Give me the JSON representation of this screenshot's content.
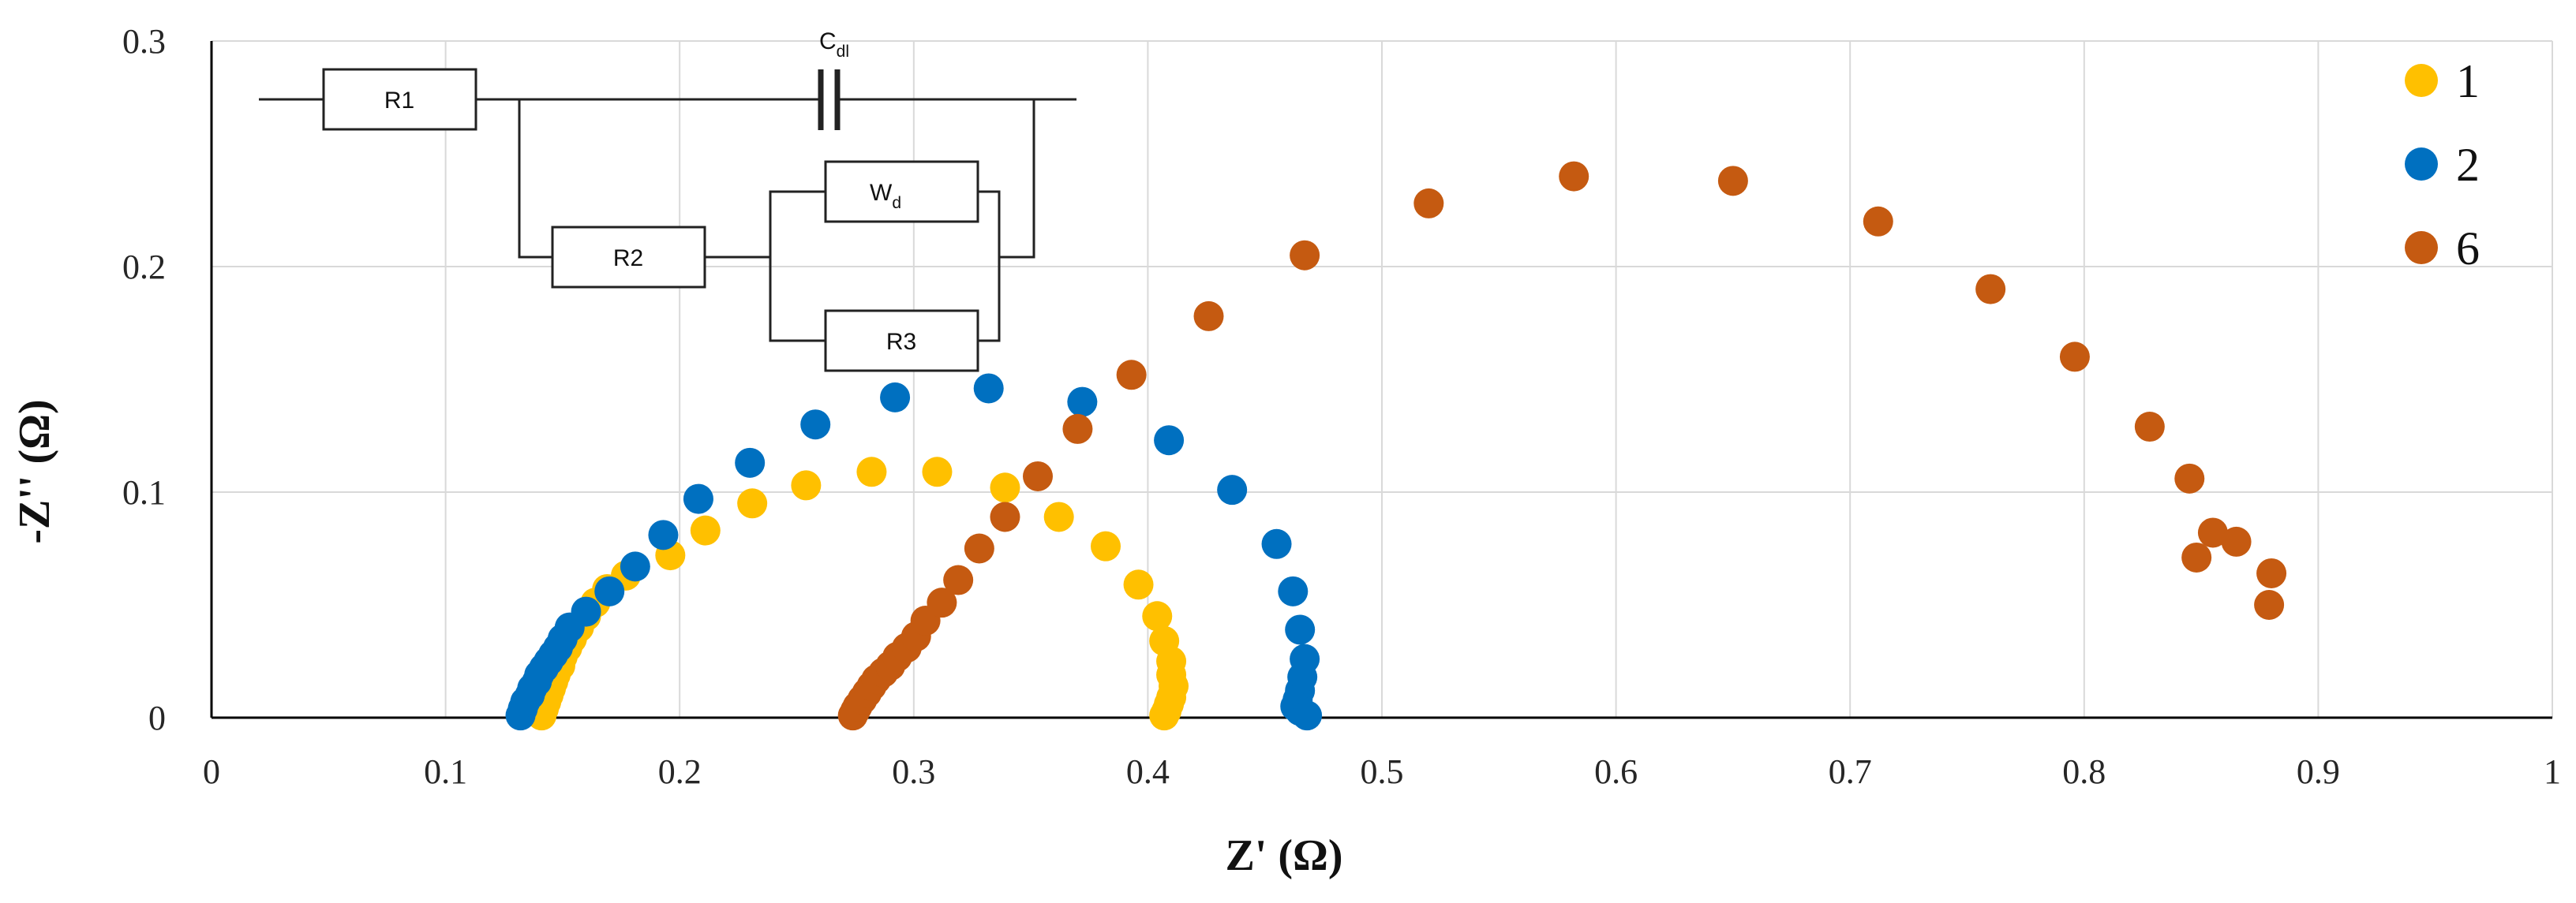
{
  "chart_data": {
    "type": "scatter",
    "title": "",
    "xlabel": "Z' (Ω)",
    "ylabel": "-Z'' (Ω)",
    "xlim": [
      0,
      1
    ],
    "ylim": [
      0,
      0.3
    ],
    "x_ticks": [
      "0",
      "0.1",
      "0.2",
      "0.3",
      "0.4",
      "0.5",
      "0.6",
      "0.7",
      "0.8",
      "0.9",
      "1"
    ],
    "y_ticks": [
      "0",
      "0.1",
      "0.2",
      "0.3"
    ],
    "grid": true,
    "legend_position": "top-right",
    "series": [
      {
        "name": "1",
        "color": "#FFC000",
        "points": [
          [
            0.141,
            0.001
          ],
          [
            0.142,
            0.004
          ],
          [
            0.143,
            0.007
          ],
          [
            0.144,
            0.01
          ],
          [
            0.145,
            0.013
          ],
          [
            0.146,
            0.016
          ],
          [
            0.147,
            0.019
          ],
          [
            0.149,
            0.023
          ],
          [
            0.15,
            0.027
          ],
          [
            0.152,
            0.031
          ],
          [
            0.154,
            0.035
          ],
          [
            0.157,
            0.04
          ],
          [
            0.16,
            0.045
          ],
          [
            0.164,
            0.051
          ],
          [
            0.169,
            0.057
          ],
          [
            0.177,
            0.063
          ],
          [
            0.196,
            0.072
          ],
          [
            0.211,
            0.083
          ],
          [
            0.231,
            0.095
          ],
          [
            0.254,
            0.103
          ],
          [
            0.282,
            0.109
          ],
          [
            0.31,
            0.109
          ],
          [
            0.339,
            0.102
          ],
          [
            0.362,
            0.089
          ],
          [
            0.382,
            0.076
          ],
          [
            0.396,
            0.059
          ],
          [
            0.404,
            0.045
          ],
          [
            0.407,
            0.034
          ],
          [
            0.41,
            0.025
          ],
          [
            0.41,
            0.019
          ],
          [
            0.411,
            0.014
          ],
          [
            0.41,
            0.009
          ],
          [
            0.409,
            0.006
          ],
          [
            0.408,
            0.003
          ],
          [
            0.407,
            0.001
          ]
        ]
      },
      {
        "name": "2",
        "color": "#0070C0",
        "points": [
          [
            0.132,
            0.001
          ],
          [
            0.133,
            0.004
          ],
          [
            0.134,
            0.007
          ],
          [
            0.136,
            0.01
          ],
          [
            0.137,
            0.013
          ],
          [
            0.139,
            0.016
          ],
          [
            0.14,
            0.019
          ],
          [
            0.142,
            0.022
          ],
          [
            0.144,
            0.025
          ],
          [
            0.146,
            0.028
          ],
          [
            0.148,
            0.031
          ],
          [
            0.15,
            0.035
          ],
          [
            0.153,
            0.04
          ],
          [
            0.16,
            0.047
          ],
          [
            0.17,
            0.056
          ],
          [
            0.181,
            0.067
          ],
          [
            0.193,
            0.081
          ],
          [
            0.208,
            0.097
          ],
          [
            0.23,
            0.113
          ],
          [
            0.258,
            0.13
          ],
          [
            0.292,
            0.142
          ],
          [
            0.332,
            0.146
          ],
          [
            0.372,
            0.14
          ],
          [
            0.409,
            0.123
          ],
          [
            0.436,
            0.101
          ],
          [
            0.455,
            0.077
          ],
          [
            0.462,
            0.056
          ],
          [
            0.465,
            0.039
          ],
          [
            0.467,
            0.026
          ],
          [
            0.466,
            0.018
          ],
          [
            0.465,
            0.012
          ],
          [
            0.464,
            0.008
          ],
          [
            0.463,
            0.005
          ],
          [
            0.465,
            0.003
          ],
          [
            0.468,
            0.001
          ]
        ]
      },
      {
        "name": "6",
        "color": "#C55A11",
        "points": [
          [
            0.274,
            0.001
          ],
          [
            0.275,
            0.003
          ],
          [
            0.276,
            0.005
          ],
          [
            0.278,
            0.008
          ],
          [
            0.28,
            0.011
          ],
          [
            0.282,
            0.014
          ],
          [
            0.284,
            0.017
          ],
          [
            0.287,
            0.02
          ],
          [
            0.29,
            0.023
          ],
          [
            0.293,
            0.027
          ],
          [
            0.297,
            0.031
          ],
          [
            0.301,
            0.036
          ],
          [
            0.305,
            0.043
          ],
          [
            0.312,
            0.051
          ],
          [
            0.319,
            0.061
          ],
          [
            0.328,
            0.075
          ],
          [
            0.339,
            0.089
          ],
          [
            0.353,
            0.107
          ],
          [
            0.37,
            0.128
          ],
          [
            0.393,
            0.152
          ],
          [
            0.426,
            0.178
          ],
          [
            0.467,
            0.205
          ],
          [
            0.52,
            0.228
          ],
          [
            0.582,
            0.24
          ],
          [
            0.65,
            0.238
          ],
          [
            0.712,
            0.22
          ],
          [
            0.76,
            0.19
          ],
          [
            0.796,
            0.16
          ],
          [
            0.828,
            0.129
          ],
          [
            0.845,
            0.106
          ],
          [
            0.855,
            0.082
          ],
          [
            0.865,
            0.078
          ],
          [
            0.848,
            0.071
          ],
          [
            0.88,
            0.064
          ],
          [
            0.879,
            0.05
          ]
        ]
      }
    ]
  },
  "circuit": {
    "labels": {
      "r1": "R1",
      "r2": "R2",
      "r3": "R3",
      "w": "W",
      "w_sub": "d",
      "c": "C",
      "c_sub": "dl"
    }
  }
}
